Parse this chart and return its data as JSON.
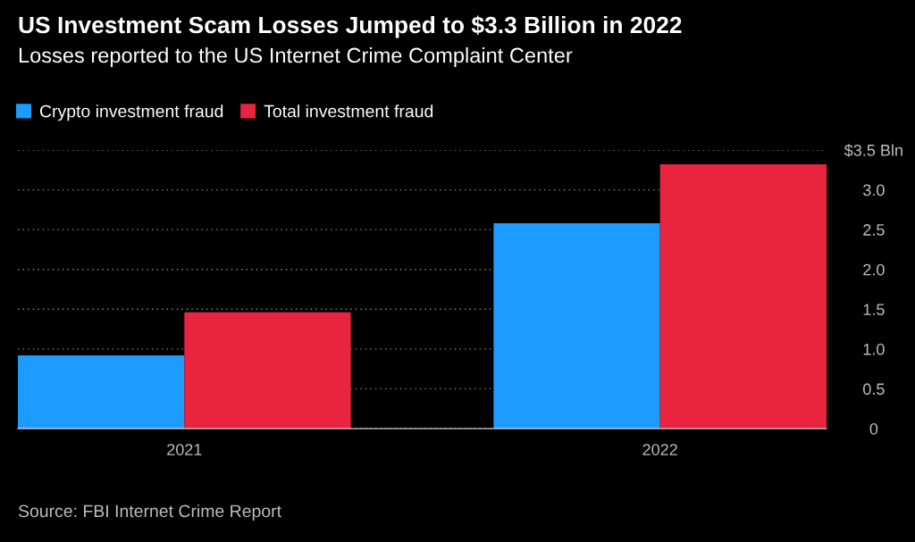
{
  "chart_data": {
    "type": "bar",
    "title": "US Investment Scam Losses Jumped to $3.3 Billion in 2022",
    "subtitle": "Losses reported to the US Internet Crime Complaint Center",
    "categories": [
      "2021",
      "2022"
    ],
    "series": [
      {
        "name": "Crypto investment fraud",
        "color": "#1e9bff",
        "values": [
          0.92,
          2.58
        ]
      },
      {
        "name": "Total investment fraud",
        "color": "#e8243f",
        "values": [
          1.46,
          3.32
        ]
      }
    ],
    "ylim": [
      0,
      3.5
    ],
    "yticks": [
      {
        "value": 0,
        "label": "0"
      },
      {
        "value": 0.5,
        "label": "0.5"
      },
      {
        "value": 1,
        "label": "1.0"
      },
      {
        "value": 1.5,
        "label": "1.5"
      },
      {
        "value": 2,
        "label": "2.0"
      },
      {
        "value": 2.5,
        "label": "2.5"
      },
      {
        "value": 3,
        "label": "3.0"
      },
      {
        "value": 3.5,
        "label": "$3.5 Bln"
      }
    ],
    "grid": "y",
    "legend": "top left",
    "annotations": [
      "Source: FBI Internet Crime Report"
    ]
  }
}
